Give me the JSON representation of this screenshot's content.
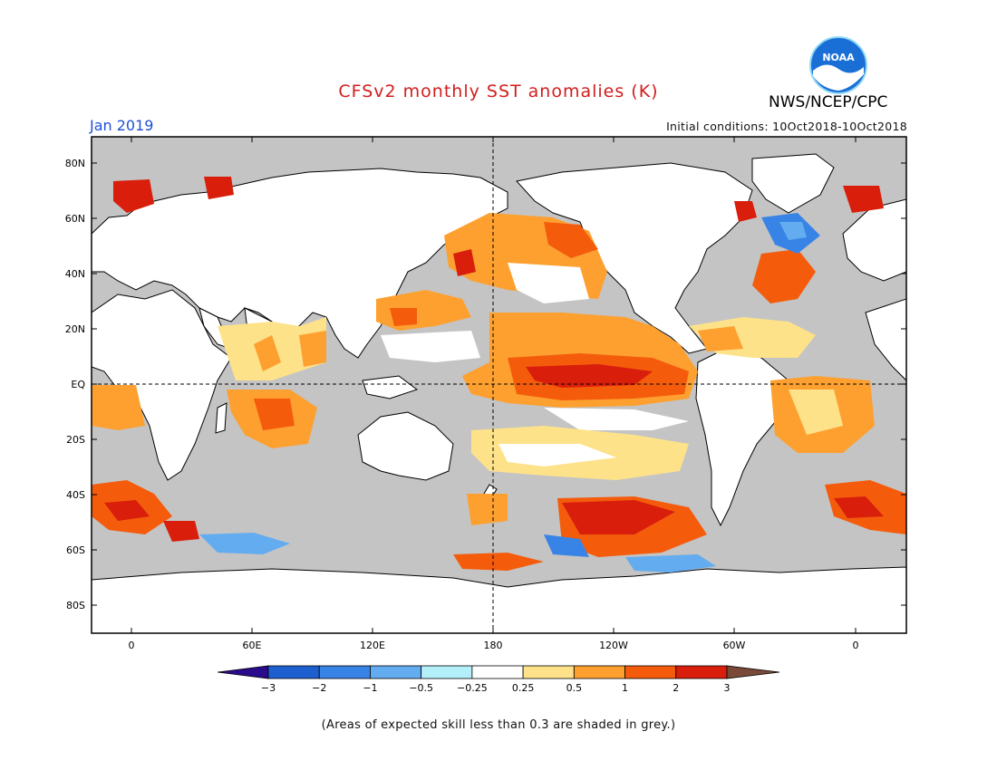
{
  "header": {
    "title": "CFSv2 monthly SST anomalies (K)",
    "month": "Jan 2019",
    "initial_conditions": "Initial conditions: 10Oct2018-10Oct2018",
    "agency": "NWS/NCEP/CPC",
    "logo_text": "NOAA"
  },
  "map": {
    "lat_labels": [
      "80N",
      "60N",
      "40N",
      "20N",
      "EQ",
      "20S",
      "40S",
      "60S",
      "80S"
    ],
    "lon_labels": [
      "0",
      "60E",
      "120E",
      "180",
      "120W",
      "60W",
      "0"
    ],
    "colors": {
      "land": "#ffffff",
      "low_skill": "#c4c4c4",
      "coast": "#000000"
    }
  },
  "colorbar": {
    "labels": [
      "-3",
      "-2",
      "-1",
      "-0.5",
      "-0.25",
      "0.25",
      "0.5",
      "1",
      "2",
      "3"
    ],
    "colors": [
      "#2a0b8c",
      "#1e5fd0",
      "#3884e6",
      "#63acf0",
      "#b4f0fa",
      "#ffffff",
      "#fde28a",
      "#fda030",
      "#f45c0c",
      "#d91e0c",
      "#a30d0d",
      "#7a4a38"
    ]
  },
  "footnote": "(Areas of expected skill less than 0.3 are shaded in grey.)"
}
